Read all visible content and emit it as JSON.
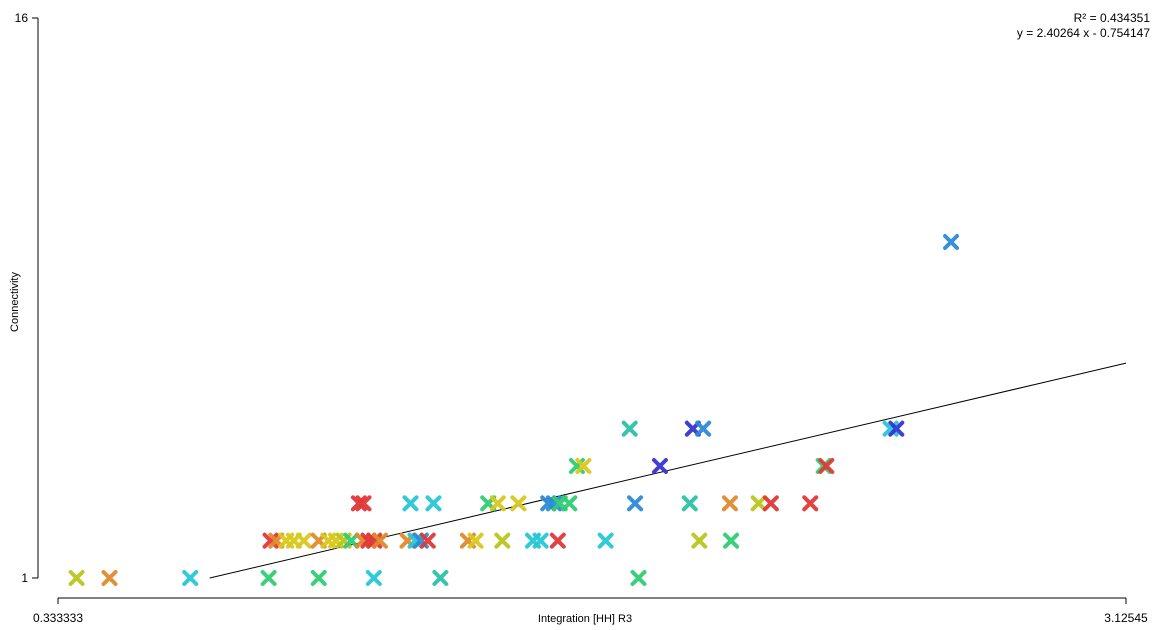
{
  "chart_data": {
    "type": "scatter",
    "title": "",
    "xlabel": "Integration [HH] R3",
    "ylabel": "Connectivity",
    "xlim": [
      0.333333,
      3.12545
    ],
    "ylim": [
      1,
      16
    ],
    "x_tick_labels": [
      "0.333333",
      "3.12545"
    ],
    "y_tick_labels": [
      "1",
      "16"
    ],
    "marker": "x",
    "grid": false,
    "legend": "none",
    "regression": {
      "r_squared_label": "R² = 0.434351",
      "equation_label": "y = 2.40264 x - 0.754147",
      "slope": 2.40264,
      "intercept": -0.754147,
      "x_range": [
        0.73,
        3.12545
      ]
    },
    "points": [
      {
        "x": 0.382,
        "y": 1,
        "color": "#b9c61e"
      },
      {
        "x": 0.468,
        "y": 1,
        "color": "#e08a2c"
      },
      {
        "x": 0.679,
        "y": 1,
        "color": "#27c6d6"
      },
      {
        "x": 0.884,
        "y": 1,
        "color": "#2fcc72"
      },
      {
        "x": 1.015,
        "y": 1,
        "color": "#2fcc72"
      },
      {
        "x": 1.159,
        "y": 1,
        "color": "#27c6d6"
      },
      {
        "x": 1.333,
        "y": 1,
        "color": "#2ac1a8"
      },
      {
        "x": 1.851,
        "y": 1,
        "color": "#2fcc72"
      },
      {
        "x": 0.889,
        "y": 2,
        "color": "#e03838"
      },
      {
        "x": 0.904,
        "y": 2,
        "color": "#e08a2c"
      },
      {
        "x": 0.93,
        "y": 2,
        "color": "#d9c81e"
      },
      {
        "x": 0.95,
        "y": 2,
        "color": "#d9c81e"
      },
      {
        "x": 0.976,
        "y": 2,
        "color": "#d9c81e"
      },
      {
        "x": 1.015,
        "y": 2,
        "color": "#e08a2c"
      },
      {
        "x": 1.04,
        "y": 2,
        "color": "#d9c81e"
      },
      {
        "x": 1.06,
        "y": 2,
        "color": "#d9c81e"
      },
      {
        "x": 1.08,
        "y": 2,
        "color": "#b9c61e"
      },
      {
        "x": 1.1,
        "y": 2,
        "color": "#2fcc72"
      },
      {
        "x": 1.13,
        "y": 2,
        "color": "#e08a2c"
      },
      {
        "x": 1.145,
        "y": 2,
        "color": "#e03838"
      },
      {
        "x": 1.16,
        "y": 2,
        "color": "#e03838"
      },
      {
        "x": 1.175,
        "y": 2,
        "color": "#e08a2c"
      },
      {
        "x": 1.247,
        "y": 2,
        "color": "#e08a2c"
      },
      {
        "x": 1.268,
        "y": 2,
        "color": "#27c6d6"
      },
      {
        "x": 1.282,
        "y": 2,
        "color": "#2c8ad6"
      },
      {
        "x": 1.3,
        "y": 2,
        "color": "#e03838"
      },
      {
        "x": 1.405,
        "y": 2,
        "color": "#e08a2c"
      },
      {
        "x": 1.425,
        "y": 2,
        "color": "#d9c81e"
      },
      {
        "x": 1.495,
        "y": 2,
        "color": "#b9c61e"
      },
      {
        "x": 1.575,
        "y": 2,
        "color": "#27c6d6"
      },
      {
        "x": 1.595,
        "y": 2,
        "color": "#27c6d6"
      },
      {
        "x": 1.64,
        "y": 2,
        "color": "#e03838"
      },
      {
        "x": 1.765,
        "y": 2,
        "color": "#27c6d6"
      },
      {
        "x": 2.01,
        "y": 2,
        "color": "#b9c61e"
      },
      {
        "x": 2.093,
        "y": 2,
        "color": "#2fcc72"
      },
      {
        "x": 1.12,
        "y": 3,
        "color": "#e03838"
      },
      {
        "x": 1.132,
        "y": 3,
        "color": "#e03838"
      },
      {
        "x": 1.255,
        "y": 3,
        "color": "#27c6d6"
      },
      {
        "x": 1.315,
        "y": 3,
        "color": "#27c6d6"
      },
      {
        "x": 1.458,
        "y": 3,
        "color": "#2fcc72"
      },
      {
        "x": 1.483,
        "y": 3,
        "color": "#d9c81e"
      },
      {
        "x": 1.537,
        "y": 3,
        "color": "#d9c81e"
      },
      {
        "x": 1.615,
        "y": 3,
        "color": "#2c8ad6"
      },
      {
        "x": 1.63,
        "y": 3,
        "color": "#2c8ad6"
      },
      {
        "x": 1.645,
        "y": 3,
        "color": "#2fcc72"
      },
      {
        "x": 1.67,
        "y": 3,
        "color": "#2fcc72"
      },
      {
        "x": 1.842,
        "y": 3,
        "color": "#2c8ad6"
      },
      {
        "x": 1.985,
        "y": 3,
        "color": "#2ac1a8"
      },
      {
        "x": 2.09,
        "y": 3,
        "color": "#e08a2c"
      },
      {
        "x": 2.165,
        "y": 3,
        "color": "#b9c61e"
      },
      {
        "x": 2.197,
        "y": 3,
        "color": "#e03838"
      },
      {
        "x": 2.3,
        "y": 3,
        "color": "#e03838"
      },
      {
        "x": 1.69,
        "y": 4,
        "color": "#2fcc72"
      },
      {
        "x": 1.707,
        "y": 4,
        "color": "#d9c81e"
      },
      {
        "x": 1.907,
        "y": 4,
        "color": "#3535d0"
      },
      {
        "x": 2.335,
        "y": 4,
        "color": "#2fcc72"
      },
      {
        "x": 2.342,
        "y": 4,
        "color": "#e03838"
      },
      {
        "x": 1.828,
        "y": 5,
        "color": "#2ac1a8"
      },
      {
        "x": 1.993,
        "y": 5,
        "color": "#3535d0"
      },
      {
        "x": 2.02,
        "y": 5,
        "color": "#2c8ad6"
      },
      {
        "x": 2.51,
        "y": 5,
        "color": "#27c6d6"
      },
      {
        "x": 2.525,
        "y": 5,
        "color": "#3535d0"
      },
      {
        "x": 2.668,
        "y": 10,
        "color": "#2c8ad6"
      }
    ]
  }
}
